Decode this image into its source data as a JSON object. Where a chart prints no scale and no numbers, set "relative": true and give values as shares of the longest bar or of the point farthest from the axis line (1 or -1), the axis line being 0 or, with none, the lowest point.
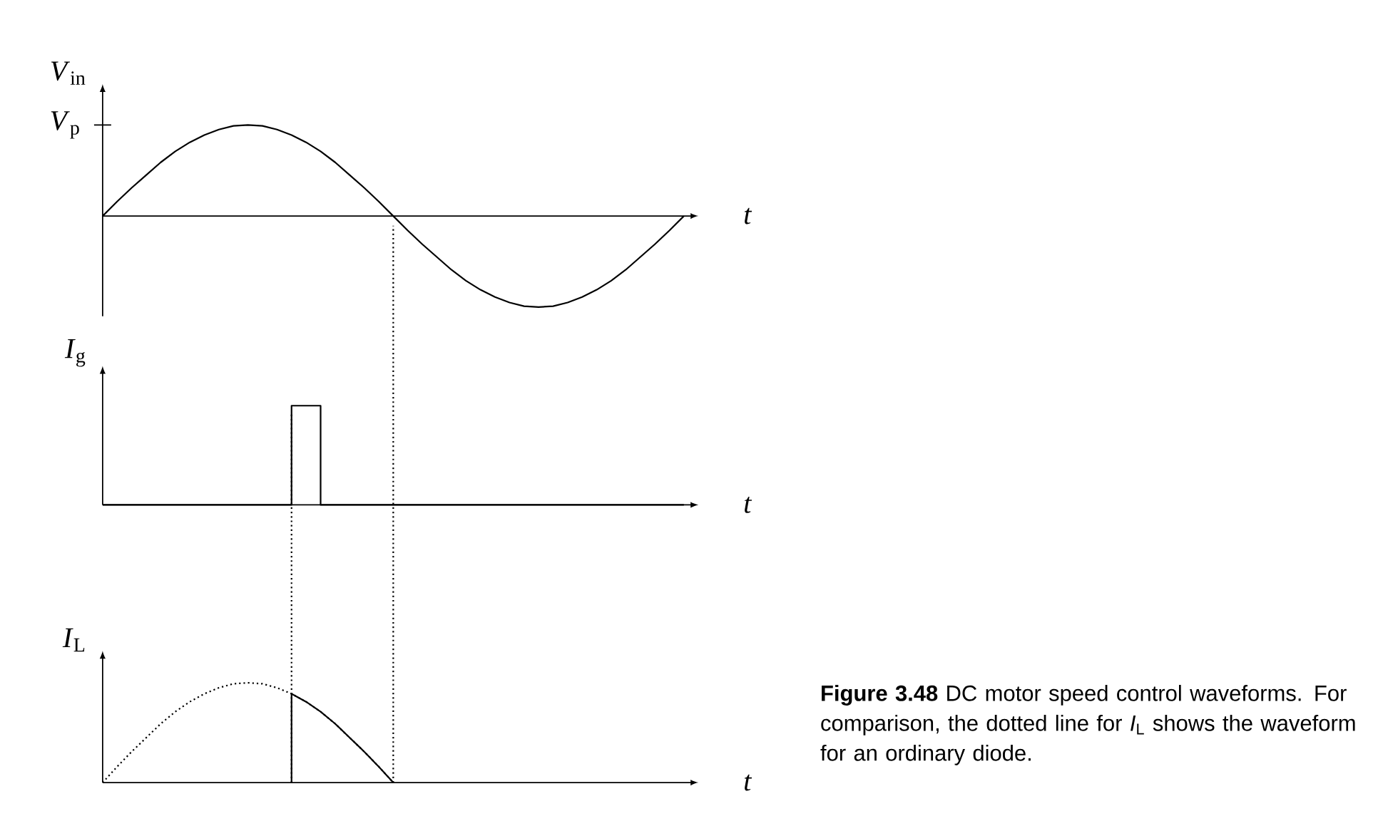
{
  "chart_data": [
    {
      "type": "line",
      "relative": true,
      "ylabel": "*V*$_{in}$",
      "xlabel": "t",
      "marker": "none",
      "categories": [
        null,
        null,
        null,
        null,
        null,
        null,
        null,
        null,
        null,
        null,
        null,
        null,
        null,
        null,
        null,
        null,
        null,
        null,
        null,
        null,
        null,
        null,
        null,
        null,
        null,
        null,
        null,
        null,
        null,
        null,
        null,
        null,
        null,
        null,
        null,
        null,
        null,
        null,
        null,
        null,
        null
      ],
      "series": [
        {
          "color": "#000000",
          "values": [
            0,
            0.16,
            0.31,
            0.45,
            0.59,
            0.71,
            0.81,
            0.89,
            0.95,
            0.99,
            1,
            0.99,
            0.95,
            0.89,
            0.81,
            0.71,
            0.59,
            0.45,
            0.31,
            0.16,
            0,
            -0.16,
            -0.31,
            -0.45,
            -0.59,
            -0.71,
            -0.81,
            -0.89,
            -0.95,
            -0.99,
            -1,
            -0.99,
            -0.95,
            -0.89,
            -0.81,
            -0.71,
            -0.59,
            -0.45,
            -0.31,
            -0.16,
            0
          ]
        }
      ],
      "annotations": [
        "*V*$_{p}$"
      ]
    },
    {
      "type": "step",
      "relative": true,
      "ylabel": "*I*$_{g}$",
      "xlabel": "t",
      "marker": "none",
      "categories": [
        null,
        null,
        null,
        null,
        null,
        null,
        null,
        null,
        null,
        null,
        null,
        null,
        null,
        null,
        null,
        null,
        null,
        null,
        null,
        null,
        null,
        null,
        null,
        null,
        null,
        null,
        null,
        null,
        null,
        null,
        null,
        null,
        null,
        null,
        null,
        null,
        null,
        null,
        null,
        null,
        null
      ],
      "series": [
        {
          "color": "#000000",
          "values": [
            0,
            0,
            0,
            0,
            0,
            0,
            0,
            0,
            0,
            0,
            0,
            0,
            0,
            1,
            1,
            0,
            0,
            0,
            0,
            0,
            0,
            0,
            0,
            0,
            0,
            0,
            0,
            0,
            0,
            0,
            0,
            0,
            0,
            0,
            0,
            0,
            0,
            0,
            0,
            0,
            0
          ]
        }
      ]
    },
    {
      "type": "line",
      "relative": true,
      "ylabel": "*I*$_{L}$",
      "xlabel": "t",
      "marker": "none",
      "categories": [
        null,
        null,
        null,
        null,
        null,
        null,
        null,
        null,
        null,
        null,
        null,
        null,
        null,
        null,
        null,
        null,
        null,
        null,
        null,
        null,
        null,
        null,
        null,
        null,
        null,
        null,
        null,
        null,
        null,
        null,
        null,
        null,
        null,
        null,
        null,
        null,
        null,
        null,
        null,
        null,
        null
      ],
      "series": [
        {
          "color": "#000000",
          "line_style": "dotted",
          "values": [
            0,
            0.16,
            0.31,
            0.45,
            0.59,
            0.71,
            0.81,
            0.89,
            0.95,
            0.99,
            1,
            0.99,
            0.95,
            0.89,
            0.81,
            0.71,
            0.59,
            0.45,
            0.31,
            0.16,
            0,
            null,
            null,
            null,
            null,
            null,
            null,
            null,
            null,
            null,
            null,
            null,
            null,
            null,
            null,
            null,
            null,
            null,
            null,
            null,
            null
          ]
        },
        {
          "color": "#000000",
          "line_style": "solid",
          "values": [
            null,
            null,
            null,
            null,
            null,
            null,
            null,
            null,
            null,
            null,
            null,
            null,
            null,
            0.89,
            0.81,
            0.71,
            0.59,
            0.45,
            0.31,
            0.16,
            0,
            null,
            null,
            null,
            null,
            null,
            null,
            null,
            null,
            null,
            null,
            null,
            null,
            null,
            null,
            null,
            null,
            null,
            null,
            null,
            null
          ]
        }
      ],
      "annotations": [
        "**Figure 3.48** DC motor speed control waveforms. For comparison, the dotted line for *I*$_{L}$ shows the waveform for an ordinary diode."
      ]
    }
  ]
}
